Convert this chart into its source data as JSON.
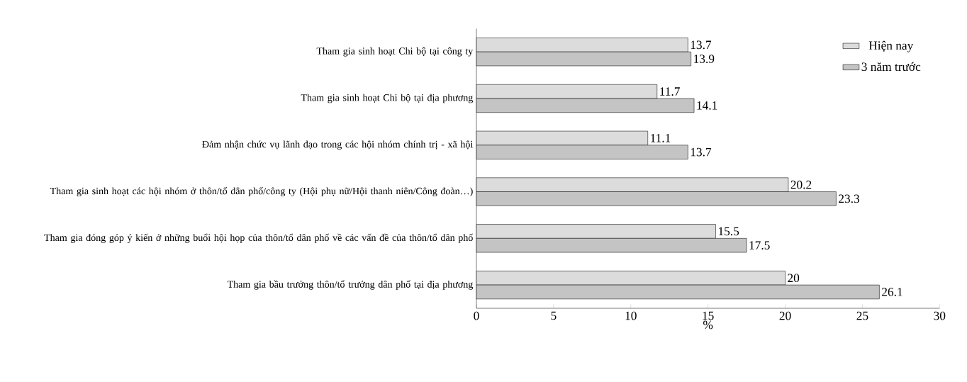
{
  "chart_data": {
    "type": "bar",
    "orientation": "horizontal",
    "xlabel": "%",
    "categories": [
      "Tham gia sinh hoạt Chi bộ tại công ty",
      "Tham gia sinh hoạt Chi bộ tại địa phương",
      "Đảm nhận chức vụ lãnh đạo trong các hội nhóm chính trị - xã hội",
      "Tham gia sinh hoạt các hội nhóm ở thôn/tổ dân phố/công ty (Hội phụ nữ/Hội thanh niên/Công đoàn…)",
      "Tham gia đóng góp ý kiến ở những buổi hội họp của thôn/tổ dân phố về các vấn đề của thôn/tổ dân phố",
      "Tham gia bầu trưởng thôn/tổ trưởng dân phố tại địa phương"
    ],
    "series": [
      {
        "name": "Hiện nay",
        "color": "#dcdcdc",
        "values": [
          13.7,
          11.7,
          11.1,
          20.2,
          15.5,
          20
        ]
      },
      {
        "name": "3 năm trước",
        "color": "#c4c4c4",
        "values": [
          13.9,
          14.1,
          13.7,
          23.3,
          17.5,
          26.1
        ]
      }
    ],
    "xlim": [
      0,
      30
    ],
    "xticks": [
      0,
      5,
      10,
      15,
      20,
      25,
      30
    ],
    "data_labels": true,
    "legend": "top right"
  }
}
